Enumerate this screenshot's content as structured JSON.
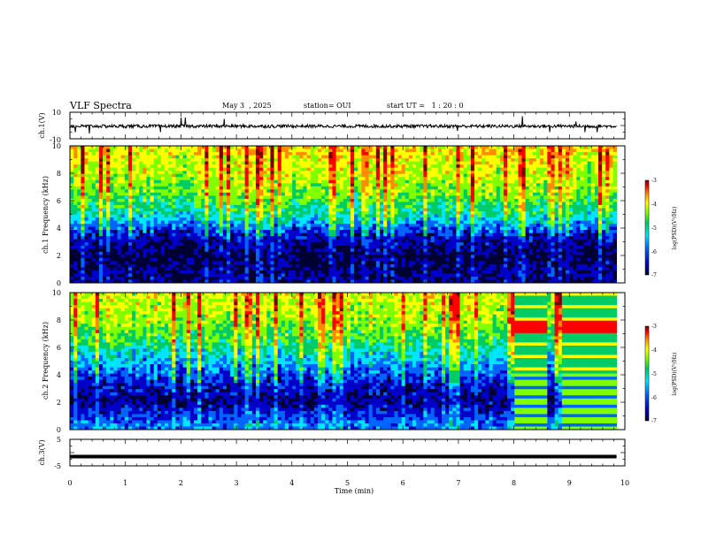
{
  "header": {
    "title": "VLF Spectra",
    "date": "May 3  , 2025",
    "station": "station= OUI",
    "start_ut": "start UT =   1 : 20 : 0"
  },
  "colors": {
    "background": "#ffffff",
    "axes": "#000000",
    "colormap": [
      "#7a0000",
      "#ff0000",
      "#ff8c00",
      "#ffff00",
      "#7fff00",
      "#00cc66",
      "#00e5ff",
      "#0064ff",
      "#0000c8",
      "#000032"
    ]
  },
  "chart_data": [
    {
      "type": "line",
      "panel": "ch1-waveform",
      "ylabel": "ch.1(V)",
      "ylim": [
        -10,
        10
      ],
      "y_ticks": [
        "10",
        "-10"
      ],
      "xlim": [
        0,
        10
      ],
      "baseline": -0.5,
      "noise_amplitude": 1.2,
      "spikes": [
        {
          "x": 0.1,
          "y": -5
        },
        {
          "x": 0.35,
          "y": -6
        },
        {
          "x": 1.63,
          "y": -5
        },
        {
          "x": 2.0,
          "y": 6
        },
        {
          "x": 2.08,
          "y": 6
        },
        {
          "x": 2.78,
          "y": 5
        },
        {
          "x": 6.98,
          "y": -4
        },
        {
          "x": 8.15,
          "y": 7
        },
        {
          "x": 8.65,
          "y": -5
        },
        {
          "x": 9.12,
          "y": 3
        },
        {
          "x": 9.28,
          "y": -5
        },
        {
          "x": 9.5,
          "y": -5
        }
      ]
    },
    {
      "type": "heatmap",
      "panel": "ch1-spectrogram",
      "ylabel": "ch.1 Frequency (kHz)",
      "ylim": [
        0,
        10
      ],
      "xlim": [
        0,
        10
      ],
      "y_ticks": [
        "0",
        "2",
        "4",
        "6",
        "8",
        "10"
      ],
      "colorbar": {
        "label": "log(PSD)(V²/Hz)",
        "range": [
          -7,
          -3
        ],
        "ticks": [
          "-3",
          "-4",
          "-5",
          "-6",
          "-7"
        ]
      },
      "log_psd_profile": [
        {
          "freq_khz": 0.5,
          "log_psd": -6.6
        },
        {
          "freq_khz": 2.0,
          "log_psd": -6.8
        },
        {
          "freq_khz": 3.5,
          "log_psd": -6.4
        },
        {
          "freq_khz": 5.0,
          "log_psd": -5.4
        },
        {
          "freq_khz": 6.5,
          "log_psd": -4.9
        },
        {
          "freq_khz": 8.0,
          "log_psd": -4.6
        },
        {
          "freq_khz": 9.5,
          "log_psd": -4.4
        }
      ],
      "data_extent_min": 9.85
    },
    {
      "type": "heatmap",
      "panel": "ch2-spectrogram",
      "ylabel": "ch.2 Frequency (kHz)",
      "ylim": [
        0,
        10
      ],
      "xlim": [
        0,
        10
      ],
      "y_ticks": [
        "0",
        "2",
        "4",
        "6",
        "8",
        "10"
      ],
      "colorbar": {
        "label": "log(PSD)(V²/Hz)",
        "range": [
          -7,
          -3
        ],
        "ticks": [
          "-3",
          "-4",
          "-5",
          "-6",
          "-7"
        ]
      },
      "log_psd_profile": [
        {
          "freq_khz": 0.5,
          "log_psd": -6.0
        },
        {
          "freq_khz": 2.0,
          "log_psd": -6.6
        },
        {
          "freq_khz": 3.5,
          "log_psd": -6.3
        },
        {
          "freq_khz": 5.0,
          "log_psd": -5.7
        },
        {
          "freq_khz": 6.5,
          "log_psd": -5.1
        },
        {
          "freq_khz": 8.0,
          "log_psd": -4.7
        },
        {
          "freq_khz": 9.5,
          "log_psd": -4.5
        }
      ],
      "interference_band_min": [
        8.0,
        9.85
      ],
      "data_extent_min": 9.85
    },
    {
      "type": "line",
      "panel": "ch3-waveform",
      "ylabel": "ch.3(V)",
      "ylim": [
        -5,
        5
      ],
      "y_ticks": [
        "5",
        "-5"
      ],
      "xlim": [
        0,
        10
      ],
      "value": -1.5,
      "xlabel": "Time  (min)",
      "x_ticks": [
        "0",
        "1",
        "2",
        "3",
        "4",
        "5",
        "6",
        "7",
        "8",
        "9",
        "10"
      ]
    }
  ]
}
